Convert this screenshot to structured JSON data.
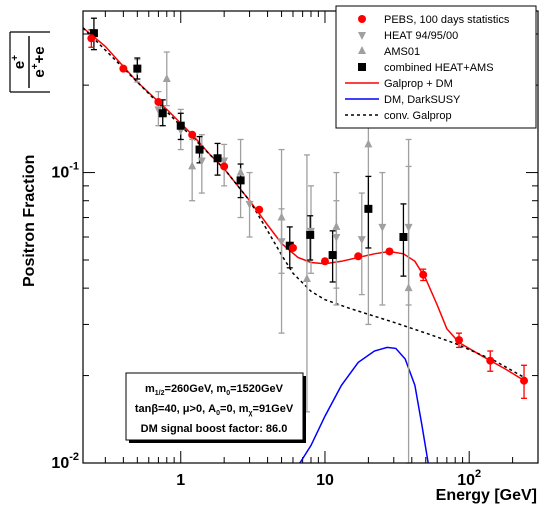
{
  "chart_data": {
    "type": "scatter",
    "xlabel": "Energy [GeV]",
    "ylabel": "Positron Fraction",
    "ylabel_formula": {
      "num_base": "e",
      "num_sup": "+",
      "den_a": "e",
      "den_a_sup": "+",
      "den_op": "+",
      "den_b": "e"
    },
    "x_scale": "log",
    "y_scale": "log",
    "xlim": [
      0.21,
      300
    ],
    "ylim": [
      0.01,
      0.36
    ],
    "x_tick_labels": [
      {
        "x": 1,
        "base": "1",
        "sup": ""
      },
      {
        "x": 10,
        "base": "10",
        "sup": ""
      },
      {
        "x": 100,
        "base": "10",
        "sup": "2"
      }
    ],
    "y_tick_labels": [
      {
        "y": 0.01,
        "base": "10",
        "sup": "-2"
      },
      {
        "y": 0.1,
        "base": "10",
        "sup": "-1"
      }
    ],
    "legend": {
      "placement": "top-right",
      "entries": [
        {
          "label": "PEBS, 100 days statistics",
          "symbol": "circle",
          "color": "#ff0000"
        },
        {
          "label": "HEAT 94/95/00",
          "symbol": "triangle-down",
          "color": "#a0a0a0"
        },
        {
          "label": "AMS01",
          "symbol": "triangle-up",
          "color": "#a0a0a0"
        },
        {
          "label": "combined HEAT+AMS",
          "symbol": "square",
          "color": "#000000"
        },
        {
          "label": "Galprop + DM",
          "symbol": "line",
          "color": "#ff0000"
        },
        {
          "label": "DM, DarkSUSY",
          "symbol": "line",
          "color": "#0000ff"
        },
        {
          "label": "conv. Galprop",
          "symbol": "dashed",
          "color": "#000000"
        }
      ]
    },
    "annotations": {
      "placement": "bottom-left",
      "line1": [
        {
          "t": "m"
        },
        {
          "t": "1/2",
          "sub": true
        },
        {
          "t": "=260GeV, m"
        },
        {
          "t": "0",
          "sub": true
        },
        {
          "t": "=1520GeV"
        }
      ],
      "line2": [
        {
          "t": "tanβ=40, μ>0, A"
        },
        {
          "t": "0",
          "sub": true
        },
        {
          "t": "=0, m"
        },
        {
          "t": "χ",
          "sub": true
        },
        {
          "t": "=91GeV"
        }
      ],
      "line3": [
        {
          "t": "DM signal boost factor:  86.0"
        }
      ]
    },
    "series": [
      {
        "name": "PEBS, 100 days statistics",
        "marker": "circle",
        "color": "#ff0000",
        "points": [
          {
            "x": 0.24,
            "y": 0.29,
            "err": 0.02
          },
          {
            "x": 0.4,
            "y": 0.228,
            "err": 0
          },
          {
            "x": 0.7,
            "y": 0.175,
            "err": 0
          },
          {
            "x": 1.2,
            "y": 0.135,
            "err": 0
          },
          {
            "x": 2.0,
            "y": 0.105,
            "err": 0
          },
          {
            "x": 3.5,
            "y": 0.0745,
            "err": 0
          },
          {
            "x": 6.0,
            "y": 0.055,
            "err": 0
          },
          {
            "x": 10.0,
            "y": 0.0495,
            "err": 0
          },
          {
            "x": 17.0,
            "y": 0.0515,
            "err": 0
          },
          {
            "x": 28.0,
            "y": 0.0535,
            "err": 0.001
          },
          {
            "x": 48.0,
            "y": 0.0445,
            "err": 0.002
          },
          {
            "x": 85.0,
            "y": 0.0265,
            "err": 0.0015
          },
          {
            "x": 140.0,
            "y": 0.0225,
            "err": 0.0018
          },
          {
            "x": 240.0,
            "y": 0.0192,
            "err": 0.0025
          }
        ]
      },
      {
        "name": "HEAT 94/95/00",
        "marker": "triangle-down",
        "color": "#a0a0a0",
        "points": [
          {
            "x": 0.5,
            "y": 0.225,
            "lo": 0.205,
            "hi": 0.245
          },
          {
            "x": 0.7,
            "y": 0.165,
            "lo": 0.145,
            "hi": 0.19
          },
          {
            "x": 1.0,
            "y": 0.14,
            "lo": 0.12,
            "hi": 0.165
          },
          {
            "x": 1.4,
            "y": 0.11,
            "lo": 0.085,
            "hi": 0.135
          },
          {
            "x": 2.0,
            "y": 0.11,
            "lo": 0.09,
            "hi": 0.125
          },
          {
            "x": 3.0,
            "y": 0.078,
            "lo": 0.06,
            "hi": 0.1
          },
          {
            "x": 5.0,
            "y": 0.058,
            "lo": 0.045,
            "hi": 0.075
          },
          {
            "x": 8.0,
            "y": 0.063,
            "lo": 0.045,
            "hi": 0.09
          },
          {
            "x": 12.0,
            "y": 0.06,
            "lo": 0.04,
            "hi": 0.08
          },
          {
            "x": 18.0,
            "y": 0.059,
            "lo": 0.038,
            "hi": 0.085
          },
          {
            "x": 25.0,
            "y": 0.065,
            "lo": 0.035,
            "hi": 0.1
          },
          {
            "x": 38.0,
            "y": 0.065,
            "lo": 0.035,
            "hi": 0.105
          }
        ]
      },
      {
        "name": "AMS01",
        "marker": "triangle-up",
        "color": "#a0a0a0",
        "points": [
          {
            "x": 1.2,
            "y": 0.105,
            "lo": 0.08,
            "hi": 0.13
          },
          {
            "x": 2.6,
            "y": 0.1,
            "lo": 0.07,
            "hi": 0.13
          },
          {
            "x": 5.0,
            "y": 0.07,
            "lo": 0.028,
            "hi": 0.12
          },
          {
            "x": 7.5,
            "y": 0.043,
            "lo": 0.015,
            "hi": 0.115
          },
          {
            "x": 12.0,
            "y": 0.065,
            "lo": 0.035,
            "hi": 0.1
          }
        ]
      },
      {
        "name": "AMS01",
        "marker": "triangle-up",
        "color": "#a0a0a0",
        "points": [
          {
            "x": 0.8,
            "y": 0.21,
            "lo": 0.17,
            "hi": 0.26
          },
          {
            "x": 20.0,
            "y": 0.125,
            "lo": 0.03,
            "hi": 0.165
          },
          {
            "x": 38.0,
            "y": 0.04,
            "lo": 0.01,
            "hi": 0.13
          }
        ]
      },
      {
        "name": "combined HEAT+AMS",
        "marker": "square",
        "color": "#000000",
        "points": [
          {
            "x": 0.25,
            "y": 0.302,
            "lo": 0.265,
            "hi": 0.34
          },
          {
            "x": 0.5,
            "y": 0.228,
            "lo": 0.21,
            "hi": 0.248
          },
          {
            "x": 0.75,
            "y": 0.16,
            "lo": 0.145,
            "hi": 0.178
          },
          {
            "x": 1.0,
            "y": 0.145,
            "lo": 0.13,
            "hi": 0.16
          },
          {
            "x": 1.35,
            "y": 0.12,
            "lo": 0.108,
            "hi": 0.133
          },
          {
            "x": 1.8,
            "y": 0.112,
            "lo": 0.098,
            "hi": 0.126
          },
          {
            "x": 2.6,
            "y": 0.094,
            "lo": 0.082,
            "hi": 0.107
          },
          {
            "x": 5.7,
            "y": 0.056,
            "lo": 0.047,
            "hi": 0.065
          },
          {
            "x": 7.9,
            "y": 0.061,
            "lo": 0.05,
            "hi": 0.071
          },
          {
            "x": 11.3,
            "y": 0.052,
            "lo": 0.042,
            "hi": 0.063
          },
          {
            "x": 20.0,
            "y": 0.075,
            "lo": 0.055,
            "hi": 0.097
          },
          {
            "x": 35.0,
            "y": 0.06,
            "lo": 0.044,
            "hi": 0.078
          }
        ]
      },
      {
        "name": "Galprop + DM",
        "type": "line",
        "color": "#ff0000",
        "style": "solid",
        "points": [
          [
            0.21,
            0.315
          ],
          [
            0.3,
            0.272
          ],
          [
            0.5,
            0.205
          ],
          [
            0.8,
            0.165
          ],
          [
            1.2,
            0.135
          ],
          [
            1.6,
            0.115
          ],
          [
            2.0,
            0.103
          ],
          [
            3.0,
            0.08
          ],
          [
            4.0,
            0.066
          ],
          [
            5.0,
            0.057
          ],
          [
            6.5,
            0.051
          ],
          [
            8.0,
            0.049
          ],
          [
            10.0,
            0.0485
          ],
          [
            13.0,
            0.0495
          ],
          [
            17.0,
            0.051
          ],
          [
            22.0,
            0.0525
          ],
          [
            28.0,
            0.0535
          ],
          [
            35.0,
            0.0525
          ],
          [
            42.0,
            0.0495
          ],
          [
            50.0,
            0.043
          ],
          [
            60.0,
            0.035
          ],
          [
            70.0,
            0.029
          ],
          [
            85.0,
            0.026
          ],
          [
            120.0,
            0.0235
          ],
          [
            180.0,
            0.021
          ],
          [
            250.0,
            0.019
          ]
        ]
      },
      {
        "name": "DM, DarkSUSY",
        "type": "line",
        "color": "#0000ff",
        "style": "solid",
        "points": [
          [
            6.7,
            0.01
          ],
          [
            8.0,
            0.0115
          ],
          [
            10.0,
            0.0145
          ],
          [
            13.0,
            0.0185
          ],
          [
            17.0,
            0.0222
          ],
          [
            22.0,
            0.0243
          ],
          [
            27.0,
            0.025
          ],
          [
            31.0,
            0.0248
          ],
          [
            36.0,
            0.0228
          ],
          [
            42.0,
            0.0185
          ],
          [
            47.0,
            0.0135
          ],
          [
            52.0,
            0.01
          ]
        ]
      },
      {
        "name": "conv. Galprop",
        "type": "line",
        "color": "#000000",
        "style": "dashed",
        "points": [
          [
            0.21,
            0.315
          ],
          [
            0.5,
            0.205
          ],
          [
            1.0,
            0.145
          ],
          [
            2.0,
            0.103
          ],
          [
            3.0,
            0.08
          ],
          [
            4.0,
            0.063
          ],
          [
            5.0,
            0.052
          ],
          [
            6.0,
            0.045
          ],
          [
            8.0,
            0.039
          ],
          [
            10.0,
            0.0365
          ],
          [
            15.0,
            0.034
          ],
          [
            20.0,
            0.0325
          ],
          [
            30.0,
            0.0305
          ],
          [
            50.0,
            0.028
          ],
          [
            80.0,
            0.0258
          ],
          [
            150.0,
            0.0225
          ],
          [
            250.0,
            0.0195
          ]
        ]
      }
    ]
  }
}
